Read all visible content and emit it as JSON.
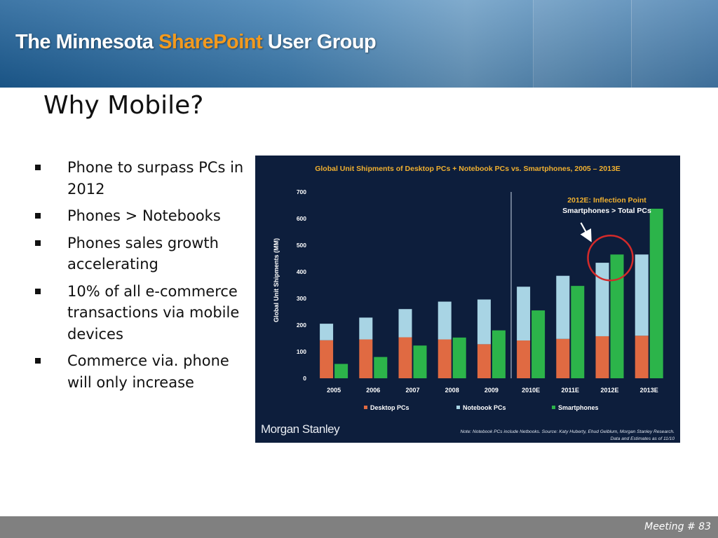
{
  "banner": {
    "prefix": "The Minnesota ",
    "brand": "SharePoint",
    "suffix": " User Group"
  },
  "slide_title": "Why Mobile?",
  "bullets": [
    "Phone to surpass PCs in 2012",
    "Phones > Notebooks",
    "Phones sales growth accelerating",
    "10% of all e-commerce transactions via mobile devices",
    "Commerce via. phone will only increase"
  ],
  "chart_data": {
    "type": "bar",
    "title": "Global Unit Shipments of Desktop PCs + Notebook PCs vs. Smartphones, 2005 – 2013E",
    "ylabel": "Global Unit Shipments (MM)",
    "xlabel": "",
    "ylim": [
      0,
      700
    ],
    "yticks": [
      0,
      100,
      200,
      300,
      400,
      500,
      600,
      700
    ],
    "categories": [
      "2005",
      "2006",
      "2007",
      "2008",
      "2009",
      "2010E",
      "2011E",
      "2012E",
      "2013E"
    ],
    "stacked_group": [
      "Desktop PCs",
      "Notebook PCs"
    ],
    "series": [
      {
        "name": "Desktop PCs",
        "color": "#e06a42",
        "values": [
          143,
          146,
          154,
          146,
          128,
          142,
          148,
          158,
          160
        ]
      },
      {
        "name": "Notebook PCs",
        "color": "#a8d4e4",
        "values": [
          62,
          82,
          106,
          142,
          168,
          202,
          237,
          276,
          305
        ]
      },
      {
        "name": "Smartphones",
        "color": "#2cb44a",
        "values": [
          54,
          80,
          123,
          153,
          180,
          255,
          347,
          465,
          637
        ]
      }
    ],
    "annotation": {
      "title": "2012E: Inflection Point",
      "text": "Smartphones > Total PCs",
      "category": "2012E"
    },
    "divider_after": "2009",
    "legend_position": "bottom",
    "grid": false,
    "brand": "Morgan Stanley",
    "note_line1": "Note: Notebook PCs include Netbooks. Source: Katy Huberty, Ehud Gelblum, Morgan Stanley Research.",
    "note_line2": "Data and Estimates as of 11/10"
  },
  "footer": {
    "text": "Meeting # 83"
  }
}
